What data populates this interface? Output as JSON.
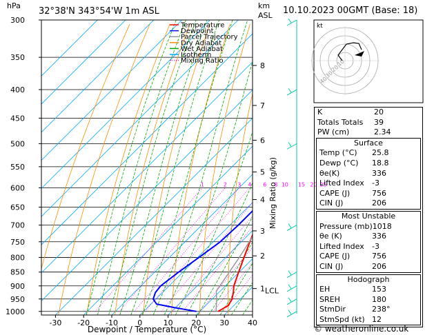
{
  "header": {
    "location": "32°38'N  343°54'W  1m  ASL",
    "pressure_unit": "hPa",
    "height_unit_km": "km",
    "height_unit_asl": "ASL",
    "datetime": "10.10.2023  00GMT  (Base: 18)"
  },
  "chart_data": {
    "type": "skew-t",
    "xlabel": "Dewpoint / Temperature (°C)",
    "ylabel_right": "Mixing Ratio (g/kg)",
    "x_ticks": [
      -30,
      -20,
      -10,
      0,
      10,
      20,
      30,
      40
    ],
    "pressure_ticks": [
      300,
      350,
      400,
      450,
      500,
      550,
      600,
      650,
      700,
      750,
      800,
      850,
      900,
      950,
      1000
    ],
    "xlim": [
      -35,
      40
    ],
    "plim": [
      300,
      1015
    ],
    "height_ticks_km": [
      {
        "p": 362,
        "label": "8"
      },
      {
        "p": 427,
        "label": "7"
      },
      {
        "p": 493,
        "label": "6"
      },
      {
        "p": 562,
        "label": "5"
      },
      {
        "p": 630,
        "label": "4"
      },
      {
        "p": 717,
        "label": "3"
      },
      {
        "p": 795,
        "label": "2"
      },
      {
        "p": 910,
        "label": "1"
      }
    ],
    "lcl": {
      "p": 918,
      "label": "LCL"
    },
    "mixing_ratio_labels": [
      "1",
      "2",
      "3",
      "4",
      "6",
      "8",
      "10",
      "15",
      "20",
      "25"
    ],
    "mixing_ratio_values": [
      1,
      2,
      3,
      4,
      6,
      8,
      10,
      15,
      20,
      25
    ],
    "legend": [
      {
        "name": "Temperature",
        "color": "#ff0000",
        "style": "solid"
      },
      {
        "name": "Dewpoint",
        "color": "#0000ff",
        "style": "solid"
      },
      {
        "name": "Parcel Trajectory",
        "color": "#999999",
        "style": "solid"
      },
      {
        "name": "Dry Adiabat",
        "color": "#ff8c00",
        "style": "solid"
      },
      {
        "name": "Wet Adiabat",
        "color": "#00aa00",
        "style": "solid"
      },
      {
        "name": "Isotherm",
        "color": "#00aaff",
        "style": "solid"
      },
      {
        "name": "Mixing Ratio",
        "color": "#ff00ff",
        "style": "dotted"
      }
    ],
    "series": [
      {
        "name": "Temperature",
        "points": [
          {
            "p": 1000,
            "t": 26.5
          },
          {
            "p": 975,
            "t": 28.0
          },
          {
            "p": 950,
            "t": 27.0
          },
          {
            "p": 925,
            "t": 25.2
          },
          {
            "p": 900,
            "t": 23.0
          },
          {
            "p": 850,
            "t": 19.8
          },
          {
            "p": 800,
            "t": 16.5
          },
          {
            "p": 750,
            "t": 13.0
          },
          {
            "p": 700,
            "t": 9.5
          },
          {
            "p": 650,
            "t": 5.8
          },
          {
            "p": 600,
            "t": 2.2
          },
          {
            "p": 550,
            "t": -1.5
          },
          {
            "p": 500,
            "t": -5.8
          },
          {
            "p": 450,
            "t": -10.5
          },
          {
            "p": 400,
            "t": -15.5
          },
          {
            "p": 350,
            "t": -21.5
          },
          {
            "p": 300,
            "t": -29.0
          }
        ]
      },
      {
        "name": "Dewpoint",
        "points": [
          {
            "p": 1000,
            "t": 18.8
          },
          {
            "p": 985,
            "t": 10.0
          },
          {
            "p": 970,
            "t": 2.0
          },
          {
            "p": 950,
            "t": -1.0
          },
          {
            "p": 925,
            "t": -2.5
          },
          {
            "p": 900,
            "t": -3.0
          },
          {
            "p": 850,
            "t": -1.5
          },
          {
            "p": 800,
            "t": 0.5
          },
          {
            "p": 750,
            "t": 2.5
          },
          {
            "p": 700,
            "t": 3.0
          },
          {
            "p": 650,
            "t": 3.0
          },
          {
            "p": 600,
            "t": 1.5
          },
          {
            "p": 560,
            "t": -4.5
          },
          {
            "p": 550,
            "t": -8.5
          },
          {
            "p": 500,
            "t": -11.0
          },
          {
            "p": 450,
            "t": -14.5
          },
          {
            "p": 400,
            "t": -19.0
          },
          {
            "p": 350,
            "t": -27.0
          },
          {
            "p": 320,
            "t": -36.0
          },
          {
            "p": 300,
            "t": -40.0
          }
        ]
      },
      {
        "name": "Parcel Trajectory",
        "points": [
          {
            "p": 1000,
            "t": 25.8
          },
          {
            "p": 950,
            "t": 21.5
          },
          {
            "p": 918,
            "t": 18.5
          },
          {
            "p": 900,
            "t": 18.0
          },
          {
            "p": 850,
            "t": 16.5
          },
          {
            "p": 800,
            "t": 14.8
          },
          {
            "p": 750,
            "t": 12.8
          },
          {
            "p": 700,
            "t": 10.6
          },
          {
            "p": 650,
            "t": 8.0
          },
          {
            "p": 600,
            "t": 5.0
          },
          {
            "p": 550,
            "t": 1.8
          },
          {
            "p": 500,
            "t": -1.8
          },
          {
            "p": 450,
            "t": -6.0
          },
          {
            "p": 400,
            "t": -11.0
          },
          {
            "p": 350,
            "t": -17.0
          },
          {
            "p": 300,
            "t": -24.5
          }
        ]
      }
    ]
  },
  "hodograph": {
    "label": "kt",
    "rings": [
      "10",
      "20",
      "30",
      "40"
    ]
  },
  "indices": {
    "rows": [
      {
        "label": "K",
        "value": "20"
      },
      {
        "label": "Totals Totals",
        "value": "39"
      },
      {
        "label": "PW (cm)",
        "value": "2.34"
      }
    ]
  },
  "surface": {
    "title": "Surface",
    "rows": [
      {
        "label": "Temp (°C)",
        "value": "25.8"
      },
      {
        "label": "Dewp (°C)",
        "value": "18.8"
      },
      {
        "label": "θe(K)",
        "value": "336"
      },
      {
        "label": "Lifted Index",
        "value": "-3"
      },
      {
        "label": "CAPE (J)",
        "value": "756"
      },
      {
        "label": "CIN (J)",
        "value": "206"
      }
    ]
  },
  "most_unstable": {
    "title": "Most Unstable",
    "rows": [
      {
        "label": "Pressure (mb)",
        "value": "1018"
      },
      {
        "label": "θe (K)",
        "value": "336"
      },
      {
        "label": "Lifted Index",
        "value": "-3"
      },
      {
        "label": "CAPE (J)",
        "value": "756"
      },
      {
        "label": "CIN (J)",
        "value": "206"
      }
    ]
  },
  "hodograph_table": {
    "title": "Hodograph",
    "rows": [
      {
        "label": "EH",
        "value": "153"
      },
      {
        "label": "SREH",
        "value": "180"
      },
      {
        "label": "StmDir",
        "value": "238°"
      },
      {
        "label": "StmSpd (kt)",
        "value": "12"
      }
    ]
  },
  "footer": {
    "text": "© weatheronline.co.uk"
  },
  "colors": {
    "temperature": "#ff0000",
    "dewpoint": "#0000ff",
    "parcel": "#999999",
    "dry_adiabat": "#ff8c00",
    "wet_adiabat": "#00aa00",
    "isotherm": "#00aaff",
    "mixing_ratio": "#ff00ff",
    "wind": "#00ccaa"
  }
}
